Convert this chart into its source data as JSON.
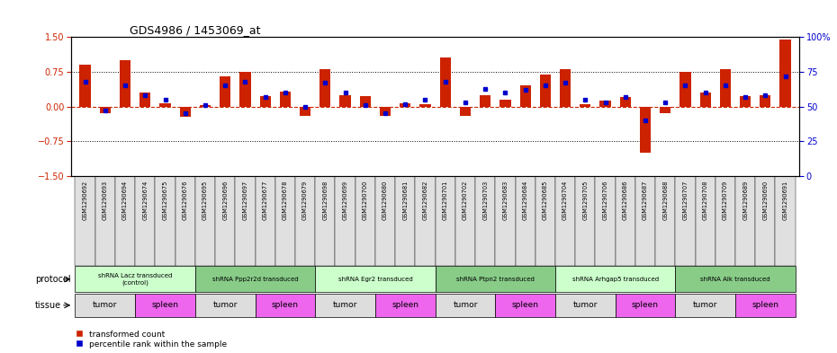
{
  "title": "GDS4986 / 1453069_at",
  "samples": [
    "GSM1290692",
    "GSM1290693",
    "GSM1290694",
    "GSM1290674",
    "GSM1290675",
    "GSM1290676",
    "GSM1290695",
    "GSM1290696",
    "GSM1290697",
    "GSM1290677",
    "GSM1290678",
    "GSM1290679",
    "GSM1290698",
    "GSM1290699",
    "GSM1290700",
    "GSM1290680",
    "GSM1290681",
    "GSM1290682",
    "GSM1290701",
    "GSM1290702",
    "GSM1290703",
    "GSM1290683",
    "GSM1290684",
    "GSM1290685",
    "GSM1290704",
    "GSM1290705",
    "GSM1290706",
    "GSM1290686",
    "GSM1290687",
    "GSM1290688",
    "GSM1290707",
    "GSM1290708",
    "GSM1290709",
    "GSM1290689",
    "GSM1290690",
    "GSM1290691"
  ],
  "transformed_count": [
    0.9,
    -0.15,
    1.0,
    0.3,
    0.08,
    -0.22,
    0.03,
    0.65,
    0.75,
    0.22,
    0.32,
    -0.2,
    0.8,
    0.25,
    0.22,
    -0.2,
    0.08,
    0.05,
    1.05,
    -0.2,
    0.25,
    0.15,
    0.45,
    0.7,
    0.8,
    0.05,
    0.12,
    0.2,
    -1.0,
    -0.15,
    0.75,
    0.3,
    0.8,
    0.22,
    0.25,
    1.45
  ],
  "percentile_rank": [
    68,
    47,
    65,
    58,
    55,
    45,
    51,
    65,
    68,
    57,
    60,
    50,
    67,
    60,
    51,
    45,
    52,
    55,
    68,
    53,
    63,
    60,
    62,
    65,
    67,
    55,
    53,
    57,
    40,
    53,
    65,
    60,
    65,
    57,
    58,
    72
  ],
  "protocols": [
    {
      "label": "shRNA Lacz transduced\n(control)",
      "start": 0,
      "end": 5,
      "color": "#ccffcc"
    },
    {
      "label": "shRNA Ppp2r2d transduced",
      "start": 6,
      "end": 11,
      "color": "#88cc88"
    },
    {
      "label": "shRNA Egr2 transduced",
      "start": 12,
      "end": 17,
      "color": "#ccffcc"
    },
    {
      "label": "shRNA Ptpn2 transduced",
      "start": 18,
      "end": 23,
      "color": "#88cc88"
    },
    {
      "label": "shRNA Arhgap5 transduced",
      "start": 24,
      "end": 29,
      "color": "#ccffcc"
    },
    {
      "label": "shRNA Alk transduced",
      "start": 30,
      "end": 35,
      "color": "#88cc88"
    }
  ],
  "tissues": [
    {
      "label": "tumor",
      "start": 0,
      "end": 2,
      "color": "#dddddd"
    },
    {
      "label": "spleen",
      "start": 3,
      "end": 5,
      "color": "#ee66ee"
    },
    {
      "label": "tumor",
      "start": 6,
      "end": 8,
      "color": "#dddddd"
    },
    {
      "label": "spleen",
      "start": 9,
      "end": 11,
      "color": "#ee66ee"
    },
    {
      "label": "tumor",
      "start": 12,
      "end": 14,
      "color": "#dddddd"
    },
    {
      "label": "spleen",
      "start": 15,
      "end": 17,
      "color": "#ee66ee"
    },
    {
      "label": "tumor",
      "start": 18,
      "end": 20,
      "color": "#dddddd"
    },
    {
      "label": "spleen",
      "start": 21,
      "end": 23,
      "color": "#ee66ee"
    },
    {
      "label": "tumor",
      "start": 24,
      "end": 26,
      "color": "#dddddd"
    },
    {
      "label": "spleen",
      "start": 27,
      "end": 29,
      "color": "#ee66ee"
    },
    {
      "label": "tumor",
      "start": 30,
      "end": 32,
      "color": "#dddddd"
    },
    {
      "label": "spleen",
      "start": 33,
      "end": 35,
      "color": "#ee66ee"
    }
  ],
  "ylim": [
    -1.5,
    1.5
  ],
  "yticks_left": [
    -1.5,
    -0.75,
    0.0,
    0.75,
    1.5
  ],
  "bar_color": "#cc2200",
  "dot_color": "#0000cc",
  "bg_color": "#ffffff",
  "bar_width": 0.55
}
